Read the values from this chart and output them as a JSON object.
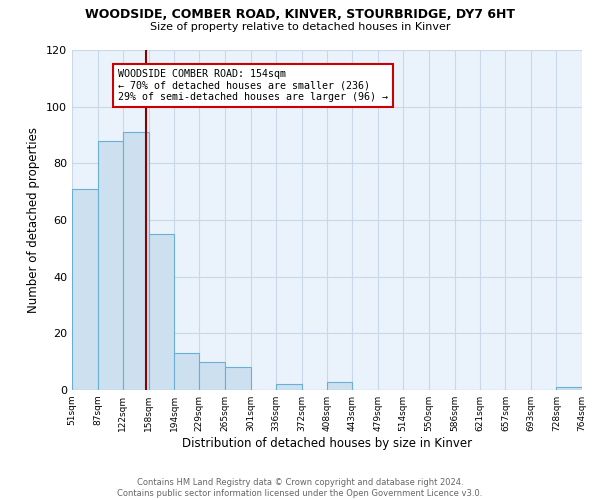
{
  "title": "WOODSIDE, COMBER ROAD, KINVER, STOURBRIDGE, DY7 6HT",
  "subtitle": "Size of property relative to detached houses in Kinver",
  "xlabel": "Distribution of detached houses by size in Kinver",
  "ylabel": "Number of detached properties",
  "bar_color": "#cce0f0",
  "bar_edge_color": "#6baed6",
  "bin_edges": [
    51,
    87,
    122,
    158,
    194,
    229,
    265,
    301,
    336,
    372,
    408,
    443,
    479,
    514,
    550,
    586,
    621,
    657,
    693,
    728,
    764
  ],
  "bar_heights": [
    71,
    88,
    91,
    55,
    13,
    10,
    8,
    0,
    2,
    0,
    3,
    0,
    0,
    0,
    0,
    0,
    0,
    0,
    0,
    1
  ],
  "property_line_x": 154,
  "property_line_color": "#8b0000",
  "annotation_box_text": "WOODSIDE COMBER ROAD: 154sqm\n← 70% of detached houses are smaller (236)\n29% of semi-detached houses are larger (96) →",
  "ylim": [
    0,
    120
  ],
  "xlim": [
    51,
    764
  ],
  "footer_line1": "Contains HM Land Registry data © Crown copyright and database right 2024.",
  "footer_line2": "Contains public sector information licensed under the Open Government Licence v3.0.",
  "tick_labels": [
    "51sqm",
    "87sqm",
    "122sqm",
    "158sqm",
    "194sqm",
    "229sqm",
    "265sqm",
    "301sqm",
    "336sqm",
    "372sqm",
    "408sqm",
    "443sqm",
    "479sqm",
    "514sqm",
    "550sqm",
    "586sqm",
    "621sqm",
    "657sqm",
    "693sqm",
    "728sqm",
    "764sqm"
  ],
  "background_color": "#ffffff",
  "plot_bg_color": "#eaf3fb",
  "grid_color": "#c8d8e8"
}
